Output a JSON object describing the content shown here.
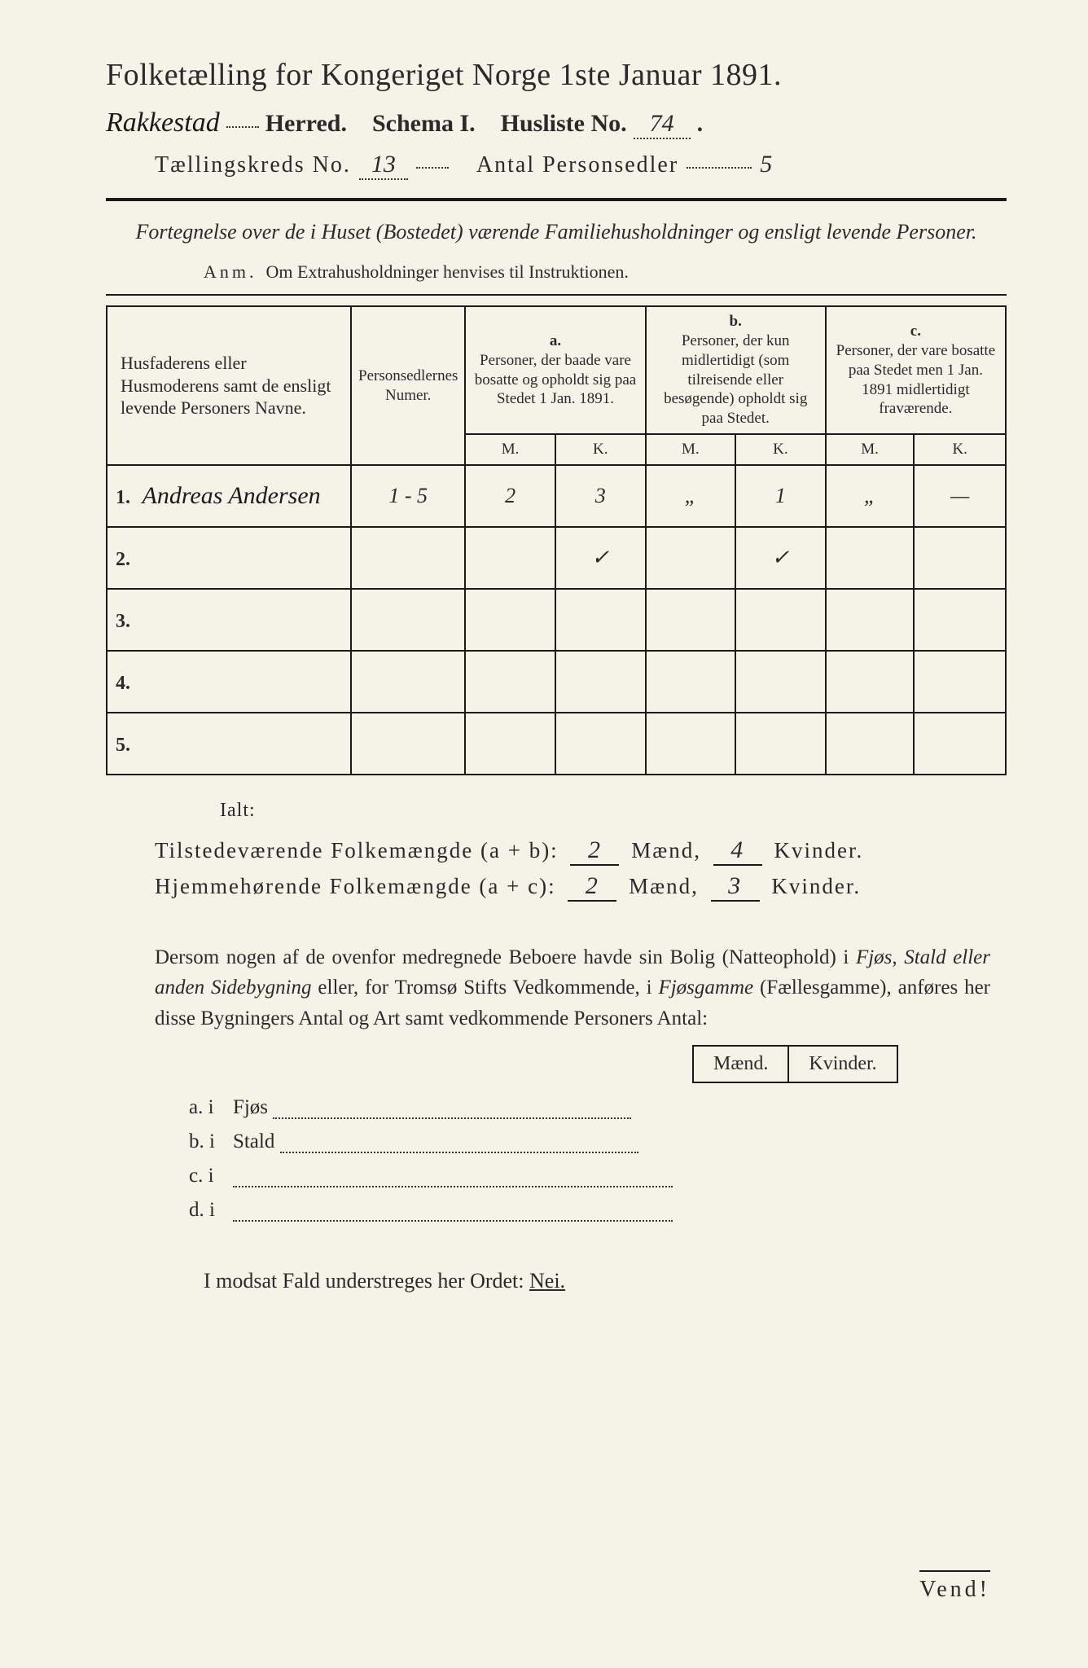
{
  "header": {
    "title": "Folketælling for Kongeriget Norge 1ste Januar 1891.",
    "herred_hand": "Rakkestad",
    "herred_label": "Herred.",
    "schema_label": "Schema I.",
    "husliste_label": "Husliste No.",
    "husliste_no": "74",
    "kreds_label": "Tællingskreds No.",
    "kreds_no": "13",
    "antal_label": "Antal Personsedler",
    "antal_val": "5"
  },
  "subtitle": "Fortegnelse over de i Huset (Bostedet) værende Familiehusholdninger og ensligt levende Personer.",
  "anm": {
    "label": "Anm.",
    "text": "Om Extrahusholdninger henvises til Instruktionen."
  },
  "table": {
    "col1": "Husfaderens eller Husmoderens samt de ensligt levende Personers Navne.",
    "col2": "Personsedlernes Numer.",
    "col_a_label": "a.",
    "col_a": "Personer, der baade vare bosatte og opholdt sig paa Stedet 1 Jan. 1891.",
    "col_b_label": "b.",
    "col_b": "Personer, der kun midlertidigt (som tilreisende eller besøgende) opholdt sig paa Stedet.",
    "col_c_label": "c.",
    "col_c": "Personer, der vare bosatte paa Stedet men 1 Jan. 1891 midlertidigt fraværende.",
    "m": "M.",
    "k": "K.",
    "rows": [
      {
        "n": "1.",
        "name": "Andreas Andersen",
        "numer": "1 - 5",
        "a_m": "2",
        "a_k": "3",
        "b_m": "„",
        "b_k": "1",
        "c_m": "„",
        "c_k": "—"
      },
      {
        "n": "2.",
        "name": "",
        "numer": "",
        "a_m": "",
        "a_k": "✓",
        "b_m": "",
        "b_k": "✓",
        "c_m": "",
        "c_k": ""
      },
      {
        "n": "3.",
        "name": "",
        "numer": "",
        "a_m": "",
        "a_k": "",
        "b_m": "",
        "b_k": "",
        "c_m": "",
        "c_k": ""
      },
      {
        "n": "4.",
        "name": "",
        "numer": "",
        "a_m": "",
        "a_k": "",
        "b_m": "",
        "b_k": "",
        "c_m": "",
        "c_k": ""
      },
      {
        "n": "5.",
        "name": "",
        "numer": "",
        "a_m": "",
        "a_k": "",
        "b_m": "",
        "b_k": "",
        "c_m": "",
        "c_k": ""
      }
    ]
  },
  "totals": {
    "ialt": "Ialt:",
    "line1_label": "Tilstedeværende Folkemængde (a + b):",
    "line1_m": "2",
    "maend": "Mænd,",
    "line1_k": "4",
    "kvinder": "Kvinder.",
    "line2_label": "Hjemmehørende Folkemængde (a + c):",
    "line2_m": "2",
    "line2_k": "3"
  },
  "para": {
    "text1": "Dersom nogen af de ovenfor medregnede Beboere havde sin Bolig (Natteophold) i ",
    "it1": "Fjøs, Stald eller anden Sidebygning",
    "text2": " eller, for Tromsø Stifts Vedkommende, i ",
    "it2": "Fjøsgamme",
    "text3": " (Fællesgamme), anføres her disse Bygningers Antal og Art samt vedkommende Personers Antal:"
  },
  "mk": {
    "m": "Mænd.",
    "k": "Kvinder."
  },
  "buildings": {
    "a": "a.  i",
    "a_name": "Fjøs",
    "b": "b.  i",
    "b_name": "Stald",
    "c": "c.  i",
    "d": "d.  i"
  },
  "nei": {
    "text": "I modsat Fald understreges her Ordet:",
    "word": "Nei."
  },
  "vend": "Vend!",
  "colors": {
    "bg": "#f5f2e8",
    "ink": "#1a1a1a"
  }
}
